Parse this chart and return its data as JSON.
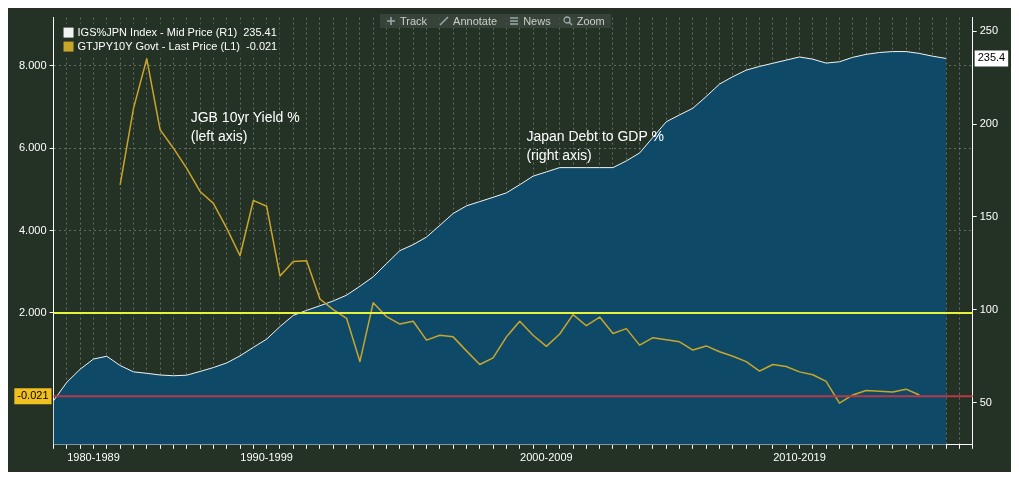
{
  "chart_data": {
    "type": "line",
    "annotations": [
      "JGB 10yr Yield %\n(left axis)",
      "Japan Debt to GDP %\n(right axis)",
      "235.4",
      "Track",
      "Annotate",
      "News",
      "Zoom"
    ],
    "categories": [
      null,
      null,
      null,
      "1980-1989",
      null,
      null,
      null,
      null,
      null,
      null,
      null,
      null,
      null,
      null,
      null,
      null,
      "1990-1999",
      null,
      null,
      null,
      null,
      null,
      null,
      null,
      null,
      null,
      null,
      null,
      null,
      null,
      null,
      null,
      null,
      null,
      null,
      null,
      null,
      "2000-2009",
      null,
      null,
      null,
      null,
      null,
      null,
      null,
      null,
      null,
      null,
      null,
      null,
      null,
      null,
      null,
      null,
      null,
      null,
      "2010-2019",
      null,
      null,
      null,
      null,
      null,
      null,
      null,
      null,
      null,
      null,
      null,
      null,
      null
    ],
    "series": [
      {
        "name": "IGS%JPN Index - Mid Price (R1)  235.41",
        "type": "area",
        "axis": "y2",
        "color": "#f2f2f2",
        "values": [
          51,
          61,
          68,
          73.5,
          75,
          70,
          66.6,
          65.8,
          64.9,
          64.5,
          64.8,
          66.8,
          68.9,
          71.4,
          75.2,
          79.8,
          84.2,
          91,
          97,
          99.7,
          102.2,
          104.8,
          107.9,
          112.7,
          117.8,
          124.9,
          131.9,
          135.1,
          139.2,
          145.5,
          151.9,
          156,
          158.3,
          160.6,
          163,
          167.4,
          172,
          174.3,
          176.6,
          176.6,
          176.6,
          176.6,
          176.6,
          180.2,
          184.5,
          192.9,
          201.3,
          205,
          208.6,
          214.9,
          221.6,
          225.6,
          229.1,
          231.1,
          232.8,
          234.5,
          236.2,
          235,
          232.9,
          233.6,
          236,
          237.6,
          238.6,
          239.1,
          239.1,
          238.1,
          236.6,
          235.41,
          null,
          null
        ]
      },
      {
        "name": "GTJPY10Y Govt - Last Price (L1)  -0.021",
        "type": "line",
        "color": "#c9a62a",
        "values": [
          null,
          null,
          null,
          null,
          null,
          5.11,
          6.96,
          8.17,
          6.45,
          6.0,
          5.51,
          4.95,
          4.66,
          4.06,
          3.39,
          4.73,
          4.59,
          2.9,
          3.25,
          3.27,
          2.34,
          2.08,
          1.87,
          0.82,
          2.25,
          1.91,
          1.73,
          1.8,
          1.34,
          1.46,
          1.42,
          1.08,
          0.75,
          0.91,
          1.42,
          1.8,
          1.46,
          1.19,
          1.49,
          1.96,
          1.69,
          1.9,
          1.5,
          1.62,
          1.22,
          1.4,
          1.35,
          1.3,
          1.1,
          1.2,
          1.06,
          0.95,
          0.82,
          0.59,
          0.75,
          0.7,
          0.57,
          0.5,
          0.34,
          -0.19,
          0.01,
          0.12,
          0.1,
          0.08,
          0.15,
          0.01,
          null,
          null,
          null,
          null
        ]
      }
    ],
    "ylim": [
      -1.2,
      9.17
    ],
    "yticks": [
      {
        "value": 2,
        "label": "2.000"
      },
      {
        "value": 4,
        "label": "4.000"
      },
      {
        "value": 6,
        "label": "6.000"
      },
      {
        "value": 8,
        "label": "8.000"
      }
    ],
    "y2lim": [
      27.3,
      257.4
    ],
    "y2ticks": [
      50,
      100,
      150,
      200,
      250
    ],
    "ref_lines": [
      {
        "axis": "y",
        "value": 2,
        "color": "#e6f23c"
      },
      {
        "axis": "y",
        "value": -0.021,
        "label": "-0.021",
        "color": "#b8384a"
      }
    ],
    "grid": true,
    "line_style": "solid",
    "legend": "top left"
  }
}
